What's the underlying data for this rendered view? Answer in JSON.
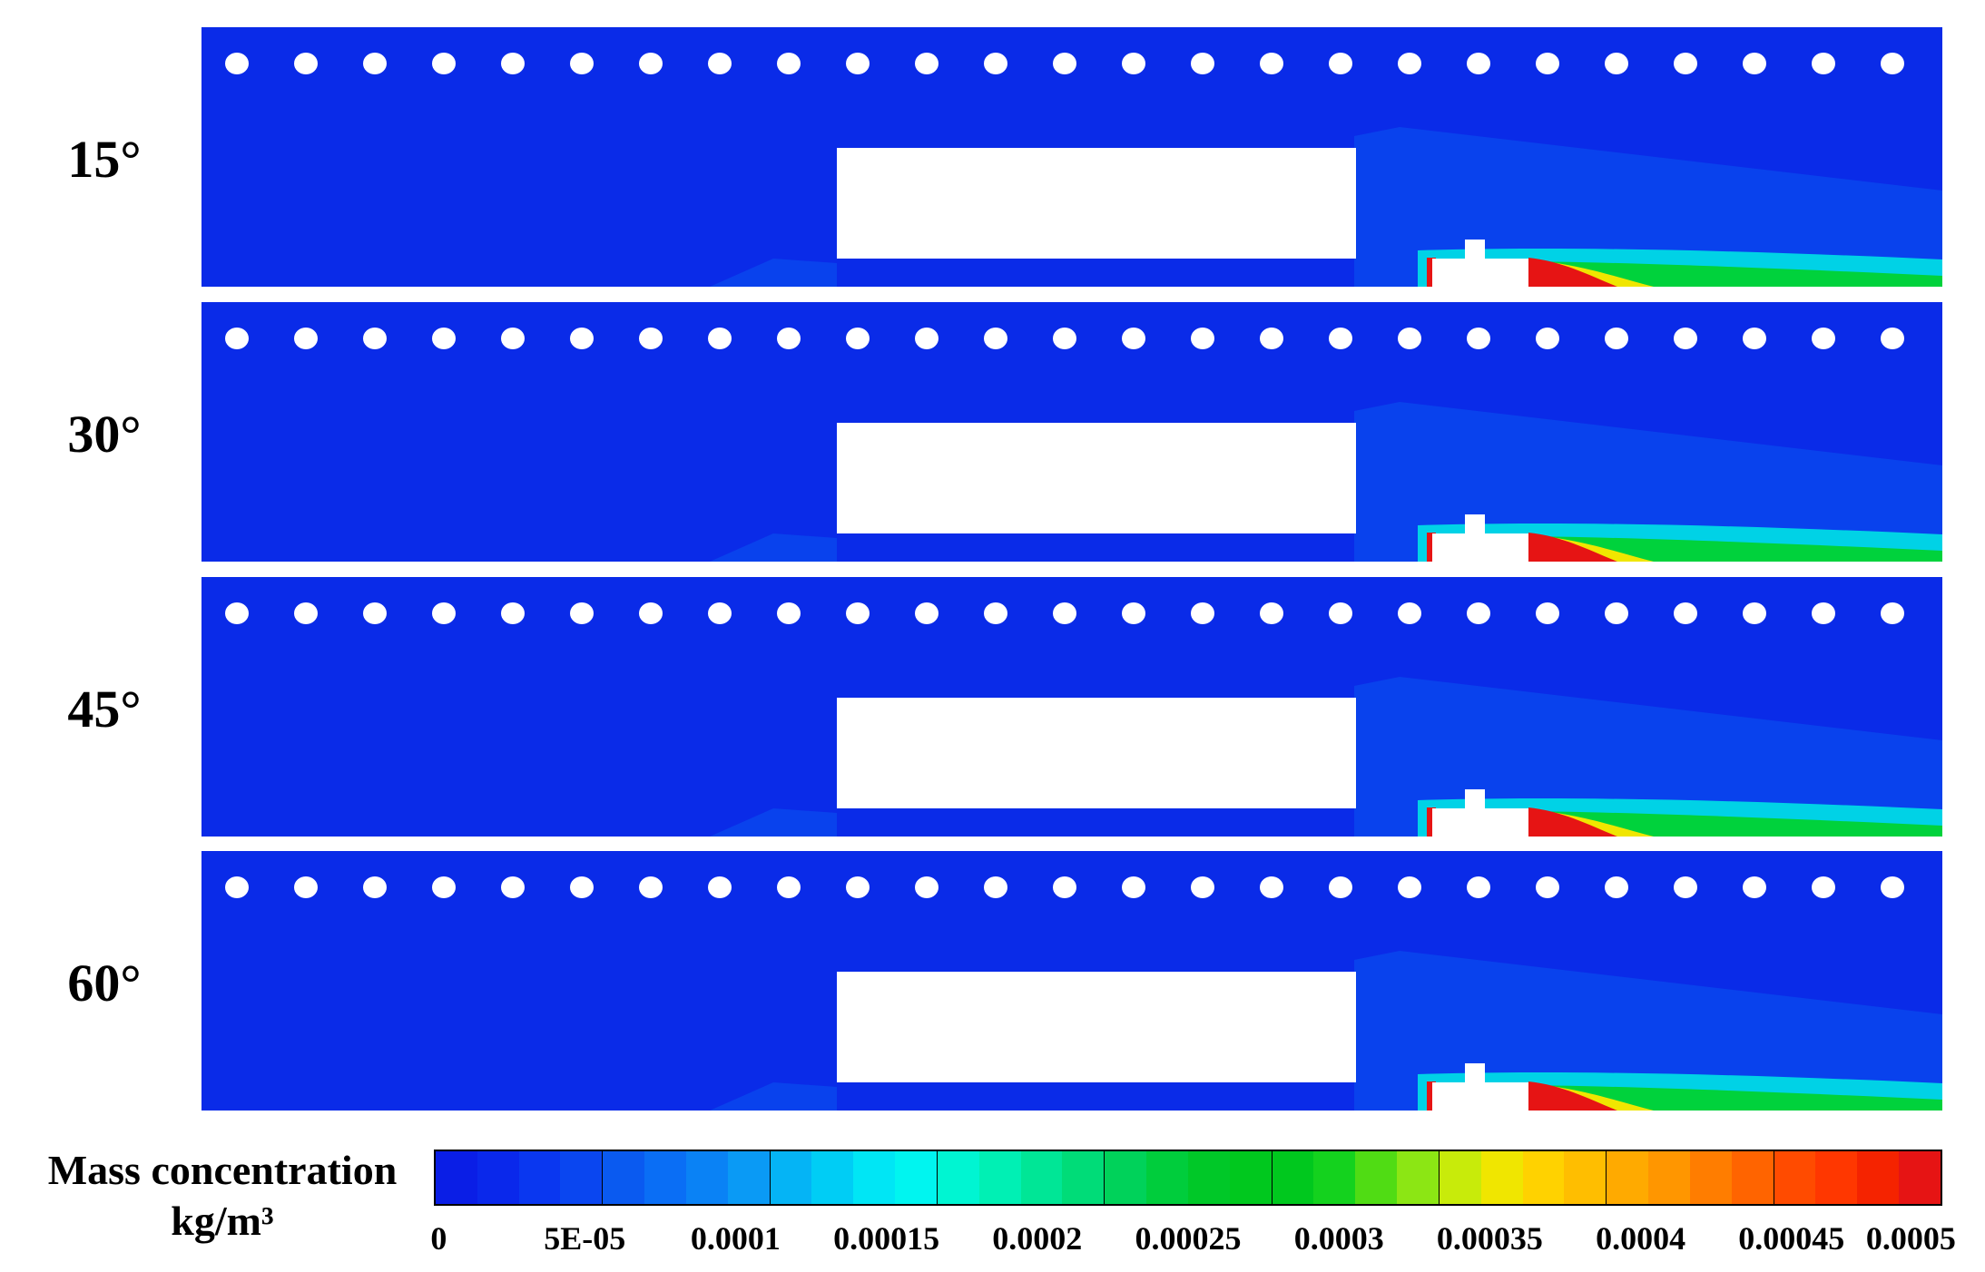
{
  "panels": [
    {
      "label": "15°"
    },
    {
      "label": "30°"
    },
    {
      "label": "45°"
    },
    {
      "label": "60°"
    }
  ],
  "legend": {
    "title_line1": "Mass concentration",
    "title_line2": "kg/m³",
    "ticks": [
      "0",
      "5E-05",
      "0.0001",
      "0.00015",
      "0.0002",
      "0.00025",
      "0.0003",
      "0.00035",
      "0.0004",
      "0.00045",
      "0.0005"
    ],
    "colors": [
      "#0a1ee6",
      "#0a28eb",
      "#0a37f0",
      "#0a46f0",
      "#0a5af0",
      "#0a6ef5",
      "#0a82f5",
      "#0a9af5",
      "#05b4f5",
      "#00cdf5",
      "#00e6f5",
      "#00f5f0",
      "#00f5d2",
      "#00f0b4",
      "#00e696",
      "#00dc78",
      "#00d25a",
      "#00cd3c",
      "#00c828",
      "#00c81e",
      "#00c81e",
      "#14d21e",
      "#50dc14",
      "#8ce614",
      "#c8eb0a",
      "#f0e600",
      "#ffd200",
      "#ffbe00",
      "#ffaa00",
      "#ff9600",
      "#ff7d00",
      "#ff6400",
      "#ff4b00",
      "#ff3700",
      "#f52300",
      "#e61414"
    ]
  },
  "field_colors": {
    "background": "#0a2be8",
    "low": "#0a6ef5",
    "mid": "#00d2e6",
    "green": "#00d23c",
    "yellow": "#f0e600",
    "high": "#e61414"
  }
}
